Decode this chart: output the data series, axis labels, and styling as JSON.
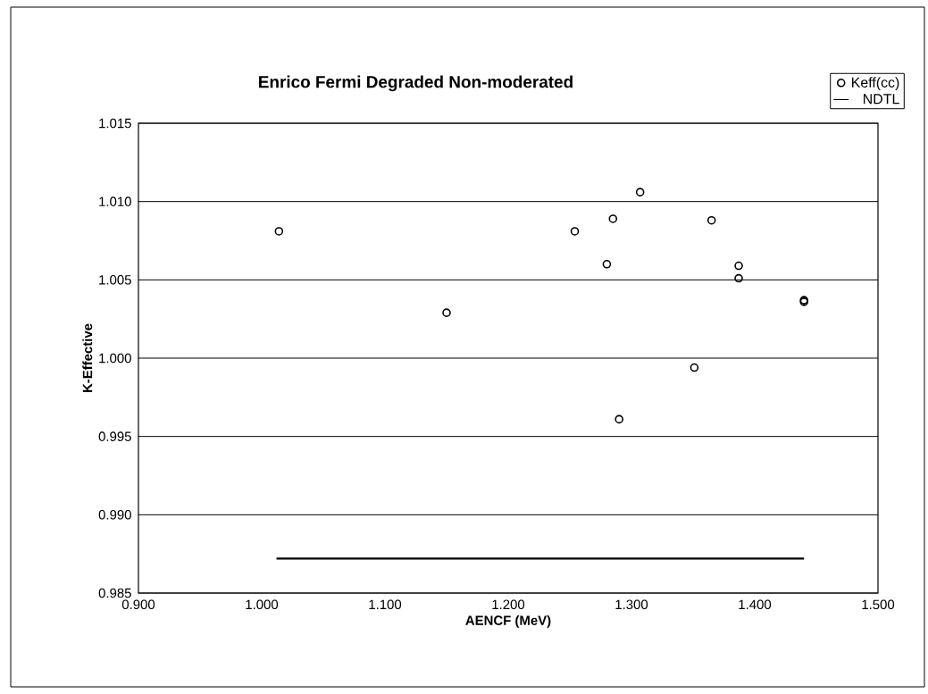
{
  "chart_data": {
    "type": "scatter",
    "title": "Enrico Fermi Degraded Non-moderated",
    "xlabel": "AENCF (MeV)",
    "ylabel": "K-Effective",
    "xlim": [
      0.9,
      1.5
    ],
    "xticks": [
      {
        "value": 0.9,
        "label": "0.900"
      },
      {
        "value": 1.0,
        "label": "1.000"
      },
      {
        "value": 1.1,
        "label": "1.100"
      },
      {
        "value": 1.2,
        "label": "1.200"
      },
      {
        "value": 1.3,
        "label": "1.300"
      },
      {
        "value": 1.4,
        "label": "1.400"
      },
      {
        "value": 1.5,
        "label": "1.500"
      }
    ],
    "ylim": [
      0.985,
      1.015
    ],
    "yticks": [
      {
        "value": 0.985,
        "label": "0.985"
      },
      {
        "value": 0.99,
        "label": "0.990"
      },
      {
        "value": 0.995,
        "label": "0.995"
      },
      {
        "value": 1.0,
        "label": "1.000"
      },
      {
        "value": 1.005,
        "label": "1.005"
      },
      {
        "value": 1.01,
        "label": "1.010"
      },
      {
        "value": 1.015,
        "label": "1.015"
      }
    ],
    "grid": "y",
    "legend": "top right",
    "series": [
      {
        "name": "Keff(cc)",
        "marker": "circle",
        "color": "#000000",
        "x": [
          1.014,
          1.15,
          1.254,
          1.28,
          1.285,
          1.29,
          1.307,
          1.351,
          1.365,
          1.387,
          1.387,
          1.44,
          1.44
        ],
        "values": [
          1.0081,
          1.0029,
          1.0081,
          1.006,
          1.0089,
          0.9961,
          1.0106,
          0.9994,
          1.0088,
          1.0059,
          1.0051,
          1.0036,
          1.0037
        ]
      },
      {
        "name": "NDTL",
        "type": "line",
        "marker": "none",
        "line_style": "solid",
        "color": "#000000",
        "x": [
          1.012,
          1.44
        ],
        "values": [
          0.9872,
          0.9872
        ]
      }
    ]
  }
}
